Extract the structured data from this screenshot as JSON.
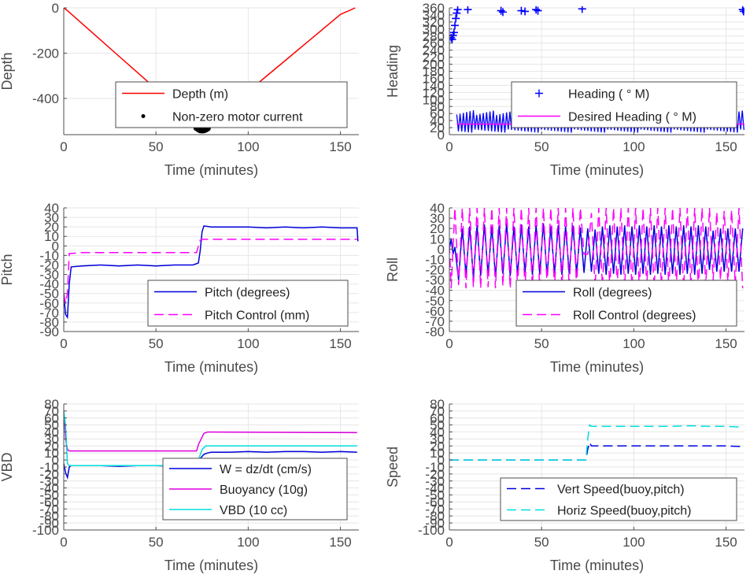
{
  "chart_data": [
    {
      "type": "line",
      "id": "depth",
      "xlabel": "Time (minutes)",
      "ylabel": "Depth",
      "xlim": [
        0,
        160
      ],
      "ylim": [
        -560,
        0
      ],
      "xticks": [
        0,
        50,
        100,
        150
      ],
      "yticks": [
        -400,
        -200,
        0
      ],
      "grid": true,
      "legend": {
        "placement": "bottom-center"
      },
      "series": [
        {
          "name": "Depth (m)",
          "color": "#ff0000",
          "style": "solid",
          "x": [
            0,
            2,
            10,
            20,
            30,
            40,
            50,
            60,
            70,
            75,
            80,
            90,
            100,
            110,
            120,
            130,
            140,
            150,
            158
          ],
          "y": [
            0,
            -12,
            -70,
            -142,
            -214,
            -286,
            -358,
            -430,
            -502,
            -540,
            -505,
            -437,
            -369,
            -301,
            -233,
            -165,
            -97,
            -29,
            0
          ]
        },
        {
          "name": "Non-zero motor current",
          "color": "#000000",
          "style": "dots",
          "x": [
            72,
            73,
            74,
            75,
            76,
            77,
            78
          ],
          "y": [
            -530,
            -536,
            -540,
            -541,
            -540,
            -537,
            -532
          ]
        }
      ]
    },
    {
      "type": "scatter",
      "id": "heading",
      "xlabel": "Time (minutes)",
      "ylabel": "Heading",
      "xlim": [
        0,
        160
      ],
      "ylim": [
        0,
        360
      ],
      "xticks": [
        0,
        50,
        100,
        150
      ],
      "yticks": [
        0,
        20,
        40,
        60,
        80,
        100,
        120,
        140,
        160,
        180,
        200,
        220,
        240,
        260,
        280,
        300,
        320,
        340,
        360
      ],
      "grid": true,
      "legend": {
        "placement": "bottom-right"
      },
      "series": [
        {
          "name": "Heading ( ° M)",
          "color": "#0000ff",
          "style": "plus",
          "x": [
            1,
            1.5,
            2,
            2.5,
            3,
            3.5,
            4,
            4.5,
            10,
            28,
            29,
            39,
            41,
            47,
            48,
            72,
            159,
            159.5
          ],
          "y": [
            275,
            270,
            282,
            290,
            310,
            330,
            345,
            355,
            355,
            352,
            348,
            352,
            350,
            355,
            352,
            357,
            355,
            350
          ]
        },
        {
          "name": "Desired Heading ( ° M)",
          "color": "#ff00ff",
          "style": "solid",
          "x": [
            4,
            160
          ],
          "y": [
            30,
            30
          ]
        }
      ],
      "oscillation_band": {
        "x_start": 4,
        "x_end": 160,
        "low": 5,
        "high": 70,
        "color": "#0000ff"
      }
    },
    {
      "type": "line",
      "id": "pitch",
      "xlabel": "Time (minutes)",
      "ylabel": "Pitch",
      "xlim": [
        0,
        160
      ],
      "ylim": [
        -90,
        40
      ],
      "xticks": [
        0,
        50,
        100,
        150
      ],
      "yticks": [
        -90,
        -80,
        -70,
        -60,
        -50,
        -40,
        -30,
        -20,
        -10,
        0,
        10,
        20,
        30,
        40
      ],
      "grid": true,
      "legend": {
        "placement": "bottom-right"
      },
      "series": [
        {
          "name": "Pitch (degrees)",
          "color": "#0000dd",
          "style": "solid",
          "x": [
            0,
            1,
            2,
            3,
            4,
            10,
            20,
            30,
            40,
            50,
            60,
            70,
            73,
            74,
            75,
            76,
            80,
            90,
            100,
            110,
            120,
            130,
            140,
            150,
            159,
            159.5
          ],
          "y": [
            -50,
            -72,
            -75,
            -40,
            -22,
            -21,
            -20,
            -21,
            -20,
            -21,
            -20,
            -20,
            -18,
            -5,
            15,
            21,
            20,
            20,
            20,
            19,
            20,
            19,
            20,
            19,
            19,
            5
          ]
        },
        {
          "name": "Pitch Control (mm)",
          "color": "#ff00ff",
          "style": "dashed",
          "x": [
            0,
            1,
            2,
            3,
            10,
            72,
            73,
            74,
            75,
            80,
            159
          ],
          "y": [
            -50,
            -60,
            -50,
            -8,
            -7,
            -7,
            0,
            6,
            7,
            7,
            7
          ]
        }
      ]
    },
    {
      "type": "line",
      "id": "roll",
      "xlabel": "Time (minutes)",
      "ylabel": "Roll",
      "xlim": [
        0,
        160
      ],
      "ylim": [
        -80,
        40
      ],
      "xticks": [
        0,
        50,
        100,
        150
      ],
      "yticks": [
        -80,
        -70,
        -60,
        -50,
        -40,
        -30,
        -20,
        -10,
        0,
        10,
        20,
        30,
        40
      ],
      "grid": true,
      "legend": {
        "placement": "bottom-right"
      },
      "series": [
        {
          "name": "Roll (degrees)",
          "color": "#0000dd",
          "style": "solid",
          "x": [
            0,
            1,
            2,
            3,
            5,
            7,
            9,
            11,
            13,
            15,
            17,
            19,
            21,
            23,
            25,
            27,
            29,
            31,
            33,
            35,
            37,
            39,
            41,
            43,
            45,
            47,
            49,
            51,
            53,
            55,
            57,
            59,
            61,
            63,
            65,
            67,
            69,
            71,
            73,
            75,
            77,
            79,
            81,
            83,
            85,
            87,
            89,
            91,
            93,
            95,
            97,
            99,
            101,
            103,
            105,
            107,
            109,
            111,
            113,
            115,
            117,
            119,
            121,
            123,
            125,
            127,
            129,
            131,
            133,
            135,
            137,
            139,
            141,
            143,
            145,
            147,
            149,
            151,
            153,
            155,
            157,
            159
          ],
          "y": [
            0,
            10,
            -5,
            2,
            -30,
            20,
            -25,
            22,
            -28,
            23,
            -26,
            24,
            -25,
            22,
            -27,
            23,
            -24,
            25,
            -26,
            22,
            -25,
            24,
            -23,
            22,
            -25,
            23,
            -24,
            25,
            -26,
            22,
            -24,
            23,
            -25,
            22,
            -24,
            23,
            -24,
            21,
            -23,
            20,
            -22,
            19,
            -24,
            22,
            -25,
            23,
            -24,
            22,
            -25,
            23,
            -24,
            22,
            -25,
            23,
            -24,
            22,
            -25,
            23,
            -24,
            22,
            -25,
            23,
            -24,
            22,
            -25,
            23,
            -24,
            22,
            -25,
            23,
            -24,
            22,
            -20,
            18,
            -22,
            20,
            -22,
            20,
            -22,
            20,
            -22,
            20
          ]
        },
        {
          "name": "Roll Control (degrees)",
          "color": "#ff00ff",
          "style": "dashed",
          "x": [
            0,
            1,
            3,
            5,
            7,
            9,
            11,
            13,
            15,
            17,
            19,
            21,
            23,
            25,
            27,
            29,
            31,
            33,
            35,
            37,
            39,
            41,
            43,
            45,
            47,
            49,
            51,
            53,
            55,
            57,
            59,
            61,
            63,
            65,
            67,
            69,
            71,
            73,
            75,
            77,
            79,
            81,
            83,
            85,
            87,
            89,
            91,
            93,
            95,
            97,
            99,
            101,
            103,
            105,
            107,
            109,
            111,
            113,
            115,
            117,
            119,
            121,
            123,
            125,
            127,
            129,
            131,
            133,
            135,
            137,
            139,
            141,
            143,
            145,
            147,
            149,
            151,
            153,
            155,
            157,
            159
          ],
          "y": [
            5,
            -38,
            40,
            -35,
            40,
            -38,
            40,
            -37,
            40,
            -38,
            40,
            -37,
            40,
            -38,
            40,
            -36,
            40,
            -38,
            40,
            -37,
            40,
            -38,
            40,
            -37,
            40,
            -38,
            40,
            -36,
            40,
            -38,
            40,
            -37,
            40,
            -38,
            40,
            -37,
            40,
            -5,
            -5,
            35,
            -38,
            40,
            -37,
            40,
            -38,
            40,
            -36,
            40,
            -38,
            40,
            -37,
            40,
            -38,
            40,
            -37,
            40,
            -38,
            40,
            -36,
            40,
            -38,
            40,
            -37,
            40,
            -38,
            40,
            -37,
            40,
            -38,
            40,
            -36,
            40,
            -30,
            36,
            -30,
            37,
            -32,
            38,
            -35,
            40,
            -38
          ]
        }
      ]
    },
    {
      "type": "line",
      "id": "vbd",
      "xlabel": "Time (minutes)",
      "ylabel": "VBD",
      "xlim": [
        0,
        160
      ],
      "ylim": [
        -100,
        80
      ],
      "xticks": [
        0,
        50,
        100,
        150
      ],
      "yticks": [
        -100,
        -90,
        -80,
        -70,
        -60,
        -50,
        -40,
        -30,
        -20,
        -10,
        0,
        10,
        20,
        30,
        40,
        50,
        60,
        70,
        80
      ],
      "grid": true,
      "legend": {
        "placement": "bottom-right"
      },
      "series": [
        {
          "name": "W = dz/dt (cm/s)",
          "color": "#0000dd",
          "style": "solid",
          "x": [
            0,
            1,
            2,
            3,
            4,
            10,
            20,
            30,
            40,
            50,
            60,
            70,
            73,
            74,
            76,
            78,
            80,
            90,
            100,
            110,
            120,
            130,
            140,
            150,
            159
          ],
          "y": [
            -5,
            -18,
            -25,
            -10,
            -8,
            -8,
            -8,
            -9,
            -8,
            -8,
            -9,
            -8,
            -8,
            2,
            8,
            10,
            11,
            11,
            12,
            11,
            12,
            12,
            11,
            12,
            11
          ]
        },
        {
          "name": "Buoyancy (10g)",
          "color": "#dd00dd",
          "style": "solid",
          "x": [
            0,
            0.5,
            1,
            2,
            3,
            10,
            72,
            73,
            76,
            78,
            80,
            159
          ],
          "y": [
            70,
            50,
            30,
            15,
            13,
            13,
            13,
            22,
            38,
            40,
            40,
            39
          ]
        },
        {
          "name": "VBD (10 cc)",
          "color": "#00dddd",
          "style": "solid",
          "x": [
            0,
            1,
            2,
            3,
            10,
            72,
            73,
            75,
            77,
            80,
            159
          ],
          "y": [
            70,
            50,
            -5,
            -8,
            -8,
            -8,
            0,
            15,
            20,
            20,
            20
          ]
        }
      ]
    },
    {
      "type": "line",
      "id": "speed",
      "xlabel": "Time (minutes)",
      "ylabel": "Speed",
      "xlim": [
        0,
        160
      ],
      "ylim": [
        -100,
        80
      ],
      "xticks": [
        0,
        50,
        100,
        150
      ],
      "yticks": [
        -100,
        -90,
        -80,
        -70,
        -60,
        -50,
        -40,
        -30,
        -20,
        -10,
        0,
        10,
        20,
        30,
        40,
        50,
        60,
        70,
        80
      ],
      "grid": true,
      "legend": {
        "placement": "bottom-right"
      },
      "series": [
        {
          "name": "Vert Speed(buoy,pitch)",
          "color": "#0000dd",
          "style": "dashed",
          "x": [
            0,
            74,
            75,
            76,
            77,
            80,
            90,
            100,
            110,
            120,
            130,
            140,
            150,
            159
          ],
          "y": [
            0,
            0,
            15,
            25,
            20,
            20,
            20,
            20,
            20,
            20,
            20,
            20,
            20,
            19
          ]
        },
        {
          "name": "Horiz Speed(buoy,pitch)",
          "color": "#00dddd",
          "style": "dashed",
          "x": [
            0,
            74,
            75,
            76,
            77,
            80,
            90,
            100,
            110,
            120,
            130,
            140,
            150,
            159
          ],
          "y": [
            0,
            0,
            30,
            50,
            48,
            48,
            48,
            48,
            48,
            48,
            49,
            48,
            48,
            47
          ]
        }
      ]
    }
  ]
}
